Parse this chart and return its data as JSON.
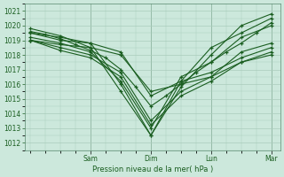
{
  "title": "Pression niveau de la mer( hPa )",
  "ylabel_vals": [
    1012,
    1013,
    1014,
    1015,
    1016,
    1017,
    1018,
    1019,
    1020,
    1021
  ],
  "ylim": [
    1011.5,
    1021.5
  ],
  "xlim": [
    -0.1,
    4.15
  ],
  "bg_color": "#cce8dc",
  "grid_color": "#aaccbb",
  "line_color": "#1a5e20",
  "series": [
    {
      "x": [
        0.0,
        0.5,
        1.0,
        1.5,
        2.0,
        2.5,
        3.0,
        3.5,
        4.0
      ],
      "y": [
        1019.5,
        1019.2,
        1018.8,
        1016.0,
        1012.5,
        1016.2,
        1018.5,
        1019.5,
        1020.5
      ]
    },
    {
      "x": [
        0.0,
        0.5,
        1.0,
        1.5,
        2.0,
        2.5,
        3.0,
        3.5,
        4.0
      ],
      "y": [
        1019.8,
        1019.3,
        1018.5,
        1015.5,
        1012.5,
        1015.8,
        1018.0,
        1020.0,
        1020.8
      ]
    },
    {
      "x": [
        0.0,
        0.5,
        1.0,
        1.5,
        2.0,
        2.5,
        3.0,
        3.5,
        4.0
      ],
      "y": [
        1019.2,
        1018.8,
        1018.2,
        1016.2,
        1013.0,
        1016.5,
        1017.5,
        1019.2,
        1020.0
      ]
    },
    {
      "x": [
        0.0,
        0.5,
        1.0,
        1.5,
        2.0,
        2.5,
        3.0,
        3.5,
        4.0
      ],
      "y": [
        1019.0,
        1018.5,
        1018.0,
        1016.8,
        1013.5,
        1015.5,
        1016.5,
        1018.2,
        1018.8
      ]
    },
    {
      "x": [
        0.0,
        0.5,
        1.0,
        1.5,
        2.0,
        2.5,
        3.0,
        3.5,
        4.0
      ],
      "y": [
        1019.0,
        1018.3,
        1017.8,
        1016.5,
        1013.2,
        1015.2,
        1016.2,
        1017.5,
        1018.0
      ]
    },
    {
      "x": [
        0.0,
        0.5,
        1.0,
        1.5,
        2.0,
        2.5,
        3.0,
        3.5,
        4.0
      ],
      "y": [
        1019.5,
        1019.0,
        1018.8,
        1018.2,
        1015.2,
        1016.2,
        1016.8,
        1017.8,
        1018.5
      ]
    },
    {
      "x": [
        0.0,
        0.5,
        1.0,
        1.5,
        2.0,
        2.5,
        3.0,
        3.5,
        4.0
      ],
      "y": [
        1019.0,
        1018.7,
        1018.5,
        1018.0,
        1015.5,
        1016.0,
        1016.5,
        1017.5,
        1018.2
      ]
    },
    {
      "x": [
        0.0,
        0.25,
        0.5,
        0.75,
        1.0,
        1.25,
        1.5,
        1.75,
        2.0,
        2.25,
        2.5,
        2.75,
        3.0,
        3.25,
        3.5,
        3.75,
        4.0
      ],
      "y": [
        1019.6,
        1019.4,
        1019.1,
        1018.7,
        1018.3,
        1017.8,
        1017.0,
        1015.8,
        1014.5,
        1015.2,
        1016.0,
        1016.8,
        1017.5,
        1018.2,
        1018.8,
        1019.5,
        1020.2
      ]
    }
  ],
  "xtick_pos": [
    1,
    2,
    3,
    4
  ],
  "xtick_labels": [
    "Sam",
    "Dim",
    "Lun",
    "Mar"
  ]
}
